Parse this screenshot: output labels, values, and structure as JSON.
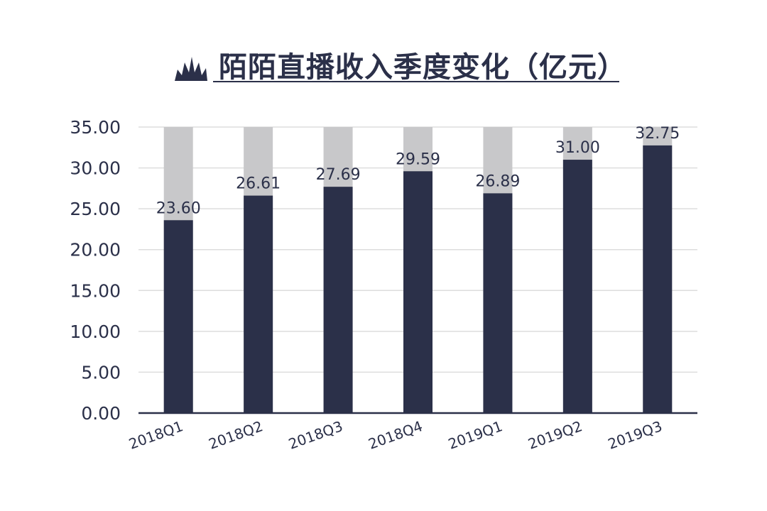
{
  "chart_data": {
    "type": "bar",
    "title": "陌陌直播收入季度变化（亿元）",
    "categories": [
      "2018Q1",
      "2018Q2",
      "2018Q3",
      "2018Q4",
      "2019Q1",
      "2019Q2",
      "2019Q3"
    ],
    "values": [
      23.6,
      26.61,
      27.69,
      29.59,
      26.89,
      31.0,
      32.75
    ],
    "value_labels": [
      "23.60",
      "26.61",
      "27.69",
      "29.59",
      "26.89",
      "31.00",
      "32.75"
    ],
    "ylim": [
      0,
      35
    ],
    "yticks": [
      "0.00",
      "5.00",
      "10.00",
      "15.00",
      "20.00",
      "25.00",
      "30.00",
      "35.00"
    ],
    "grid": true,
    "colors": {
      "bar": "#2b3049",
      "background_bar": "#c8c8ca",
      "text": "#2b3049",
      "grid": "#dddddd"
    }
  }
}
